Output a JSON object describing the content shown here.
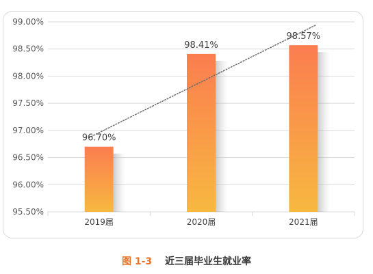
{
  "chart_data": {
    "type": "bar",
    "categories": [
      "2019届",
      "2020届",
      "2021届"
    ],
    "values": [
      96.7,
      98.41,
      98.57
    ],
    "value_labels": [
      "96.70%",
      "98.41%",
      "98.57%"
    ],
    "ylim": [
      95.5,
      99.0
    ],
    "y_ticks": [
      95.5,
      96.0,
      96.5,
      97.0,
      97.5,
      98.0,
      98.5,
      99.0
    ],
    "y_tick_labels": [
      "95.50%",
      "96.00%",
      "96.50%",
      "97.00%",
      "97.50%",
      "98.00%",
      "98.50%",
      "99.00%"
    ],
    "grid": true,
    "trendline": "dotted",
    "colors": {
      "bar_top": "#fb7d50",
      "bar_bottom": "#f7b840",
      "trend": "#707070",
      "grid": "#d9d9d9"
    }
  },
  "caption": {
    "number": "图 1-3",
    "text": "近三届毕业生就业率"
  }
}
